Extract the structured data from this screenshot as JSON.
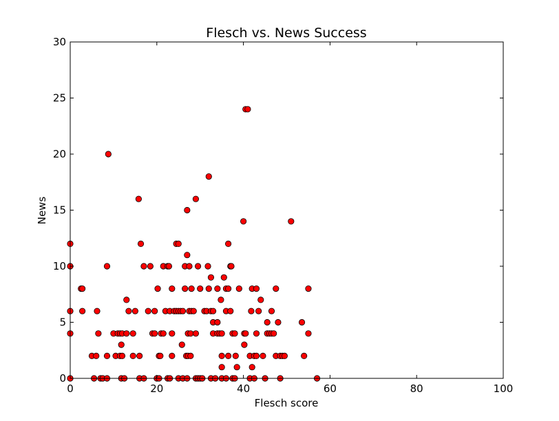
{
  "chart_data": {
    "type": "scatter",
    "title": "Flesch vs. News Success",
    "xlabel": "Flesch score",
    "ylabel": "News",
    "xlim": [
      0,
      100
    ],
    "ylim": [
      0,
      30
    ],
    "xticks": [
      0,
      20,
      40,
      60,
      80,
      100
    ],
    "yticks": [
      0,
      5,
      10,
      15,
      20,
      25,
      30
    ],
    "xtick_labels": [
      "0",
      "20",
      "40",
      "60",
      "80",
      "100"
    ],
    "ytick_labels": [
      "0",
      "5",
      "10",
      "15",
      "20",
      "25",
      "30"
    ],
    "grid": false,
    "legend": "none",
    "marker_color": "#ff0000",
    "marker_edge_color": "#000000",
    "points": [
      [
        0,
        0
      ],
      [
        0,
        4
      ],
      [
        0,
        6
      ],
      [
        0,
        10
      ],
      [
        0,
        12
      ],
      [
        2.5,
        8
      ],
      [
        2.8,
        8
      ],
      [
        2.8,
        6
      ],
      [
        5,
        2
      ],
      [
        5.5,
        0
      ],
      [
        6,
        2
      ],
      [
        6.2,
        6
      ],
      [
        6.5,
        4
      ],
      [
        7,
        0
      ],
      [
        7.5,
        0
      ],
      [
        8.5,
        2
      ],
      [
        8.5,
        0
      ],
      [
        8.5,
        10
      ],
      [
        8.8,
        20
      ],
      [
        10,
        4
      ],
      [
        10.5,
        2
      ],
      [
        11,
        4
      ],
      [
        11.5,
        4
      ],
      [
        11.5,
        2
      ],
      [
        11.8,
        0
      ],
      [
        11.8,
        3
      ],
      [
        12,
        4
      ],
      [
        12,
        2
      ],
      [
        12.5,
        0
      ],
      [
        13,
        4
      ],
      [
        13,
        7
      ],
      [
        13.5,
        6
      ],
      [
        14.5,
        2
      ],
      [
        14.5,
        4
      ],
      [
        15,
        6
      ],
      [
        15.8,
        16
      ],
      [
        16,
        0
      ],
      [
        16,
        2
      ],
      [
        16.3,
        12
      ],
      [
        17,
        10
      ],
      [
        17,
        0
      ],
      [
        18,
        6
      ],
      [
        18.5,
        10
      ],
      [
        19,
        4
      ],
      [
        19.5,
        4
      ],
      [
        19.5,
        6
      ],
      [
        20,
        0
      ],
      [
        20.2,
        8
      ],
      [
        20.5,
        0
      ],
      [
        20.5,
        2
      ],
      [
        20.8,
        2
      ],
      [
        21,
        4
      ],
      [
        21.5,
        4
      ],
      [
        21.5,
        10
      ],
      [
        22,
        6
      ],
      [
        22.5,
        0
      ],
      [
        22.5,
        10
      ],
      [
        22.8,
        10
      ],
      [
        23,
        0
      ],
      [
        23,
        6
      ],
      [
        23.5,
        2
      ],
      [
        23.5,
        4
      ],
      [
        23.5,
        8
      ],
      [
        24,
        6
      ],
      [
        24.5,
        6
      ],
      [
        24.5,
        12
      ],
      [
        25,
        0
      ],
      [
        25,
        12
      ],
      [
        25,
        6
      ],
      [
        25.5,
        6
      ],
      [
        25.8,
        3
      ],
      [
        26,
        0
      ],
      [
        26,
        6
      ],
      [
        26.5,
        8
      ],
      [
        26.5,
        10
      ],
      [
        26.8,
        2
      ],
      [
        27,
        0
      ],
      [
        27,
        11
      ],
      [
        27,
        15
      ],
      [
        27.2,
        2
      ],
      [
        27.2,
        4
      ],
      [
        27.5,
        6
      ],
      [
        27.5,
        10
      ],
      [
        27.8,
        4
      ],
      [
        27.8,
        2
      ],
      [
        28,
        8
      ],
      [
        28,
        6
      ],
      [
        28.5,
        6
      ],
      [
        29,
        0
      ],
      [
        29,
        4
      ],
      [
        29,
        16
      ],
      [
        29.5,
        0
      ],
      [
        29.5,
        10
      ],
      [
        30,
        8
      ],
      [
        30,
        0
      ],
      [
        30.5,
        0
      ],
      [
        31,
        6
      ],
      [
        31.5,
        6
      ],
      [
        31.8,
        10
      ],
      [
        32,
        18
      ],
      [
        32,
        8
      ],
      [
        32.5,
        9
      ],
      [
        32.5,
        6
      ],
      [
        32.5,
        0
      ],
      [
        33,
        6
      ],
      [
        33,
        4
      ],
      [
        33,
        5
      ],
      [
        33.5,
        0
      ],
      [
        34,
        4
      ],
      [
        34,
        8
      ],
      [
        34,
        5
      ],
      [
        34.5,
        4
      ],
      [
        34.8,
        7
      ],
      [
        35,
        4
      ],
      [
        35,
        2
      ],
      [
        35,
        0
      ],
      [
        35,
        1
      ],
      [
        35.5,
        9
      ],
      [
        36,
        8
      ],
      [
        36,
        6
      ],
      [
        36,
        0
      ],
      [
        36.5,
        2
      ],
      [
        36.5,
        8
      ],
      [
        36.5,
        12
      ],
      [
        37,
        6
      ],
      [
        37,
        10
      ],
      [
        37.2,
        10
      ],
      [
        37.5,
        4
      ],
      [
        37.5,
        0
      ],
      [
        38,
        4
      ],
      [
        38,
        0
      ],
      [
        38.2,
        2
      ],
      [
        38.5,
        1
      ],
      [
        39,
        8
      ],
      [
        40,
        14
      ],
      [
        40.2,
        3
      ],
      [
        40.2,
        4
      ],
      [
        40.5,
        4
      ],
      [
        40.5,
        24
      ],
      [
        41,
        24
      ],
      [
        41.5,
        2
      ],
      [
        41.5,
        0
      ],
      [
        41.8,
        6
      ],
      [
        42,
        8
      ],
      [
        42,
        1
      ],
      [
        42.5,
        0
      ],
      [
        42.5,
        2
      ],
      [
        43,
        2
      ],
      [
        43,
        4
      ],
      [
        43,
        8
      ],
      [
        43.5,
        6
      ],
      [
        44,
        7
      ],
      [
        44.5,
        2
      ],
      [
        45,
        0
      ],
      [
        45.5,
        4
      ],
      [
        45.5,
        5
      ],
      [
        46,
        4
      ],
      [
        46.5,
        4
      ],
      [
        46.5,
        6
      ],
      [
        47,
        4
      ],
      [
        47.5,
        2
      ],
      [
        47.5,
        8
      ],
      [
        48,
        5
      ],
      [
        48.5,
        2
      ],
      [
        48.5,
        0
      ],
      [
        49,
        2
      ],
      [
        49.5,
        2
      ],
      [
        51,
        14
      ],
      [
        53.5,
        5
      ],
      [
        54,
        2
      ],
      [
        55,
        8
      ],
      [
        55,
        4
      ],
      [
        57,
        0
      ]
    ]
  }
}
